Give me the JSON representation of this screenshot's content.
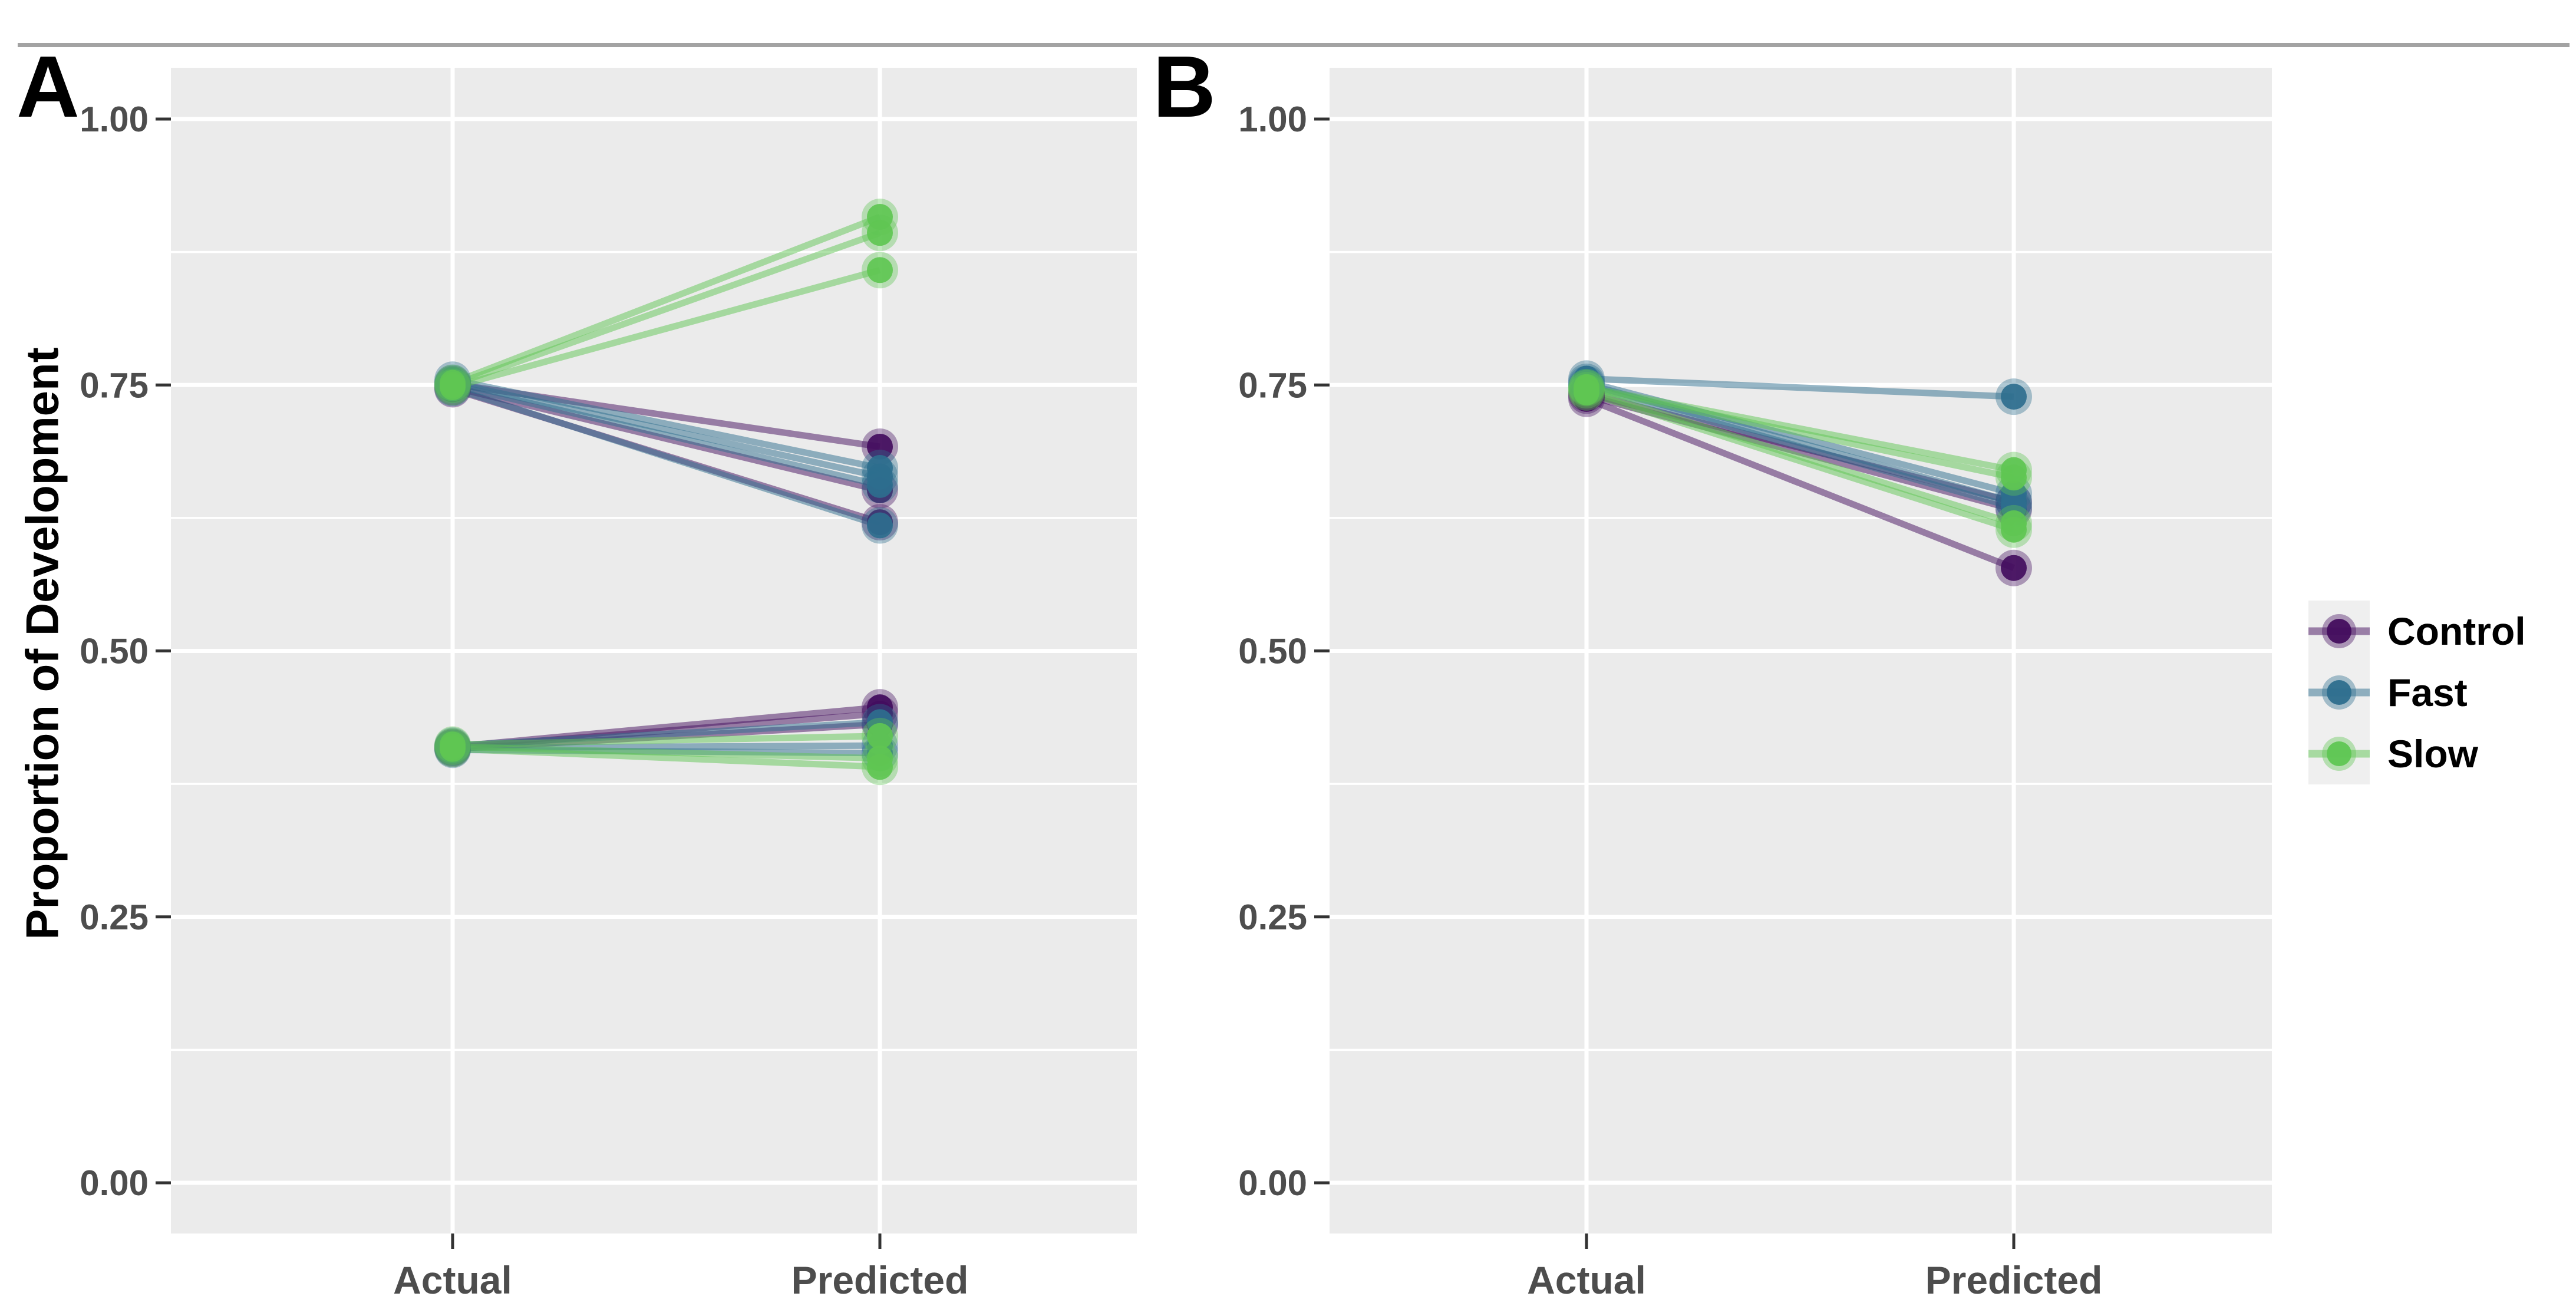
{
  "figure": {
    "background": "#ffffff",
    "top_rule_color": "#a3a3a3",
    "plot_background": "#ebebeb",
    "gridline_color": "#ffffff",
    "tick_mark_color": "#333333",
    "tick_label_color": "#4d4d4d",
    "axis_title_color": "#000000",
    "y_axis_title": "Proportion of Development"
  },
  "legend": {
    "key_background": "#efefef",
    "items": [
      {
        "label": "Control",
        "color": "#430d5e"
      },
      {
        "label": "Fast",
        "color": "#2e6e8e"
      },
      {
        "label": "Slow",
        "color": "#5fc653"
      }
    ]
  },
  "chart_data": {
    "type": "line",
    "x_categories": [
      "Actual",
      "Predicted"
    ],
    "ylabel": "Proportion of Development",
    "ylim": [
      0,
      1
    ],
    "y_ticks": [
      0.0,
      0.25,
      0.5,
      0.75,
      1.0
    ],
    "y_tick_labels": [
      "0.00",
      "0.25",
      "0.50",
      "0.75",
      "1.00"
    ],
    "y_minor_ticks": [
      0.125,
      0.375,
      0.625,
      0.875
    ],
    "grid": true,
    "legend_position": "right",
    "panels": [
      {
        "letter": "A",
        "series": [
          {
            "name": "Control",
            "color": "#430d5e",
            "lines": [
              [
                0.751,
                0.692
              ],
              [
                0.748,
                0.651
              ],
              [
                0.746,
                0.621
              ],
              [
                0.41,
                0.447
              ],
              [
                0.409,
                0.441
              ],
              [
                0.408,
                0.431
              ]
            ]
          },
          {
            "name": "Fast",
            "color": "#2e6e8e",
            "lines": [
              [
                0.755,
                0.672
              ],
              [
                0.752,
                0.664
              ],
              [
                0.75,
                0.656
              ],
              [
                0.747,
                0.618
              ],
              [
                0.411,
                0.433
              ],
              [
                0.409,
                0.411
              ],
              [
                0.407,
                0.404
              ]
            ]
          },
          {
            "name": "Slow",
            "color": "#5fc653",
            "lines": [
              [
                0.752,
                0.908
              ],
              [
                0.75,
                0.893
              ],
              [
                0.748,
                0.858
              ],
              [
                0.412,
                0.42
              ],
              [
                0.41,
                0.399
              ],
              [
                0.408,
                0.391
              ]
            ]
          }
        ]
      },
      {
        "letter": "B",
        "series": [
          {
            "name": "Control",
            "color": "#430d5e",
            "lines": [
              [
                0.742,
                0.64
              ],
              [
                0.74,
                0.633
              ],
              [
                0.737,
                0.578
              ]
            ]
          },
          {
            "name": "Fast",
            "color": "#2e6e8e",
            "lines": [
              [
                0.756,
                0.739
              ],
              [
                0.753,
                0.648
              ],
              [
                0.751,
                0.64
              ],
              [
                0.749,
                0.635
              ]
            ]
          },
          {
            "name": "Slow",
            "color": "#5fc653",
            "lines": [
              [
                0.748,
                0.67
              ],
              [
                0.747,
                0.663
              ],
              [
                0.745,
                0.62
              ],
              [
                0.743,
                0.614
              ]
            ]
          }
        ]
      }
    ]
  }
}
